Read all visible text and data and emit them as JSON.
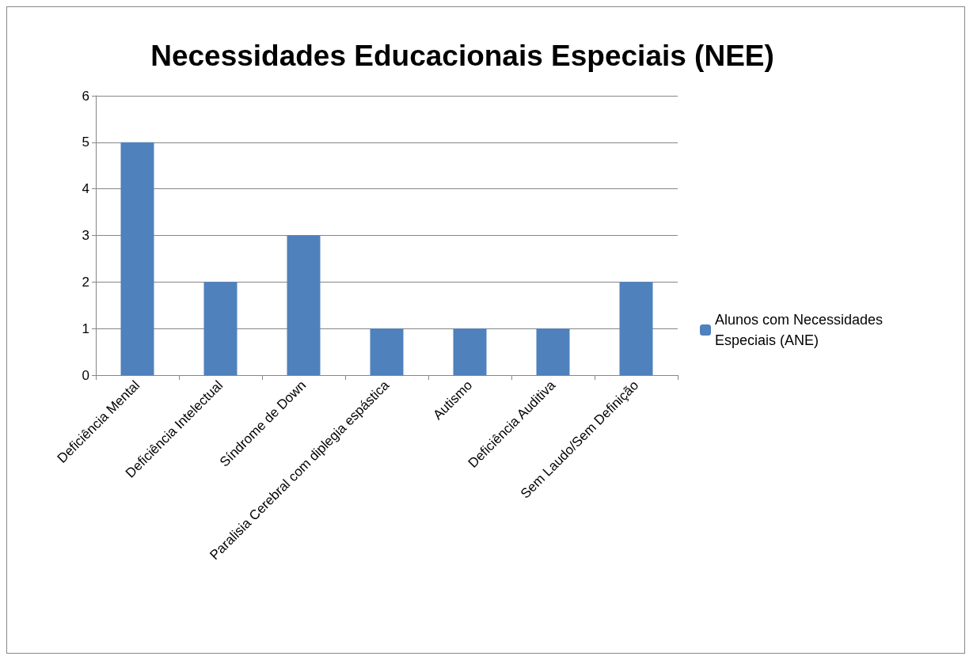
{
  "chart_data": {
    "type": "bar",
    "title": "Necessidades Educacionais Especiais (NEE)",
    "categories": [
      "Deficiência Mental",
      "Deficiência Intelectual",
      "Síndrome de Down",
      "Paralisia Cerebral com diplegia espástica",
      "Autismo",
      "Deficiência Auditiva",
      "Sem Laudo/Sem Definição"
    ],
    "series": [
      {
        "name": "Alunos com Necessidades Especiais (ANE)",
        "color": "#4f81bd",
        "values": [
          5,
          2,
          3,
          1,
          1,
          1,
          2
        ]
      }
    ],
    "ylim": [
      0,
      6
    ],
    "yticks": [
      0,
      1,
      2,
      3,
      4,
      5,
      6
    ],
    "grid": "y",
    "legend": "right"
  }
}
